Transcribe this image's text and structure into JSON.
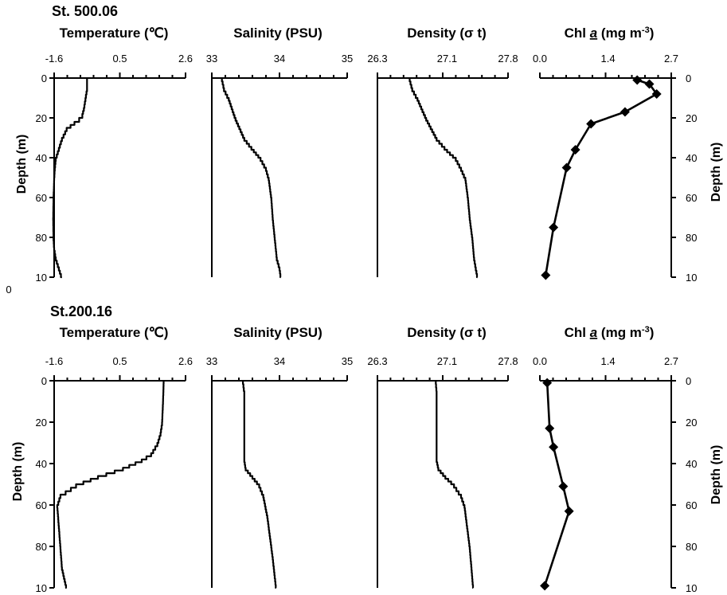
{
  "figure": {
    "stations": [
      {
        "label": "St. 500.06",
        "depth_label": "Depth (m)",
        "depth_ticks": [
          "0",
          "20",
          "40",
          "60",
          "80",
          "10"
        ],
        "depth_extra_tick": "0"
      },
      {
        "label": "St.200.16",
        "depth_label": "Depth (m)",
        "depth_ticks": [
          "0",
          "20",
          "40",
          "60",
          "80",
          "10"
        ],
        "depth_extra_tick": ""
      }
    ]
  },
  "chart_data": [
    {
      "type": "line",
      "station": "St. 500.06",
      "title": "Temperature (℃)",
      "xlim": [
        -1.6,
        2.6
      ],
      "x_ticks": [
        "-1.6",
        "0.5",
        "2.6"
      ],
      "ylim": [
        0,
        100
      ],
      "y_reversed": true,
      "x": [
        -0.55,
        -0.55,
        -0.6,
        -0.65,
        -0.7,
        -0.8,
        -0.95,
        -1.2,
        -1.35,
        -1.45,
        -1.55,
        -1.58,
        -1.6,
        -1.62,
        -1.63,
        -1.62,
        -1.6,
        -1.55,
        -1.45,
        -1.35
      ],
      "y": [
        0,
        5,
        10,
        15,
        18,
        20,
        22,
        25,
        30,
        35,
        40,
        45,
        50,
        60,
        70,
        80,
        85,
        90,
        95,
        100
      ]
    },
    {
      "type": "line",
      "station": "St. 500.06",
      "title": "Salinity (PSU)",
      "xlim": [
        33,
        35
      ],
      "x_ticks": [
        "33",
        "34",
        "35"
      ],
      "ylim": [
        0,
        100
      ],
      "y_reversed": true,
      "x": [
        33.15,
        33.18,
        33.25,
        33.35,
        33.48,
        33.62,
        33.72,
        33.8,
        33.84,
        33.88,
        33.9,
        33.93,
        33.96,
        34.0,
        34.02
      ],
      "y": [
        0,
        5,
        10,
        20,
        30,
        36,
        40,
        45,
        50,
        60,
        70,
        80,
        90,
        95,
        100
      ]
    },
    {
      "type": "line",
      "station": "St. 500.06",
      "title": "Density (σ t)",
      "xlim": [
        26.3,
        27.8
      ],
      "x_ticks": [
        "26.3",
        "27.1",
        "27.8"
      ],
      "ylim": [
        0,
        100
      ],
      "y_reversed": true,
      "x": [
        26.67,
        26.7,
        26.76,
        26.86,
        26.98,
        27.1,
        27.2,
        27.26,
        27.31,
        27.34,
        27.36,
        27.39,
        27.41,
        27.43,
        27.45
      ],
      "y": [
        0,
        5,
        10,
        20,
        30,
        36,
        40,
        45,
        50,
        60,
        70,
        80,
        90,
        95,
        100
      ]
    },
    {
      "type": "line",
      "station": "St. 500.06",
      "title": "Chl a (mg m⁻³)",
      "title_main": "Chl ",
      "title_a": "a",
      "title_unit": " (mg m",
      "title_sup": "-3",
      "title_end": ")",
      "xlim": [
        0.0,
        2.7
      ],
      "x_ticks": [
        "0.0",
        "1.4",
        "2.7"
      ],
      "ylim": [
        0,
        100
      ],
      "y_reversed": true,
      "markers": true,
      "x": [
        2.0,
        2.25,
        2.4,
        1.75,
        1.05,
        0.73,
        0.55,
        0.28,
        0.12
      ],
      "y": [
        1,
        3,
        8,
        17,
        23,
        36,
        45,
        75,
        99
      ]
    },
    {
      "type": "line",
      "station": "St.200.16",
      "title": "Temperature (℃)",
      "xlim": [
        -1.6,
        2.6
      ],
      "x_ticks": [
        "-1.6",
        "0.5",
        "2.6"
      ],
      "ylim": [
        0,
        100
      ],
      "y_reversed": true,
      "x": [
        1.9,
        1.88,
        1.85,
        1.8,
        1.7,
        1.5,
        1.2,
        0.6,
        -0.2,
        -0.9,
        -1.4,
        -1.5,
        -1.45,
        -1.4,
        -1.35,
        -1.2
      ],
      "y": [
        0,
        10,
        20,
        25,
        30,
        35,
        38,
        42,
        46,
        50,
        55,
        60,
        70,
        80,
        90,
        100
      ]
    },
    {
      "type": "line",
      "station": "St.200.16",
      "title": "Salinity (PSU)",
      "xlim": [
        33,
        35
      ],
      "x_ticks": [
        "33",
        "34",
        "35"
      ],
      "ylim": [
        0,
        100
      ],
      "y_reversed": true,
      "x": [
        33.46,
        33.48,
        33.48,
        33.48,
        33.5,
        33.6,
        33.7,
        33.76,
        33.82,
        33.86,
        33.9,
        33.95
      ],
      "y": [
        0,
        5,
        20,
        38,
        42,
        46,
        50,
        55,
        65,
        75,
        85,
        100
      ]
    },
    {
      "type": "line",
      "station": "St.200.16",
      "title": "Density (σ t)",
      "xlim": [
        26.3,
        27.8
      ],
      "x_ticks": [
        "26.3",
        "27.1",
        "27.8"
      ],
      "ylim": [
        0,
        100
      ],
      "y_reversed": true,
      "x": [
        26.97,
        26.98,
        26.98,
        26.98,
        27.0,
        27.08,
        27.18,
        27.26,
        27.3,
        27.33,
        27.36,
        27.38,
        27.4
      ],
      "y": [
        0,
        5,
        20,
        38,
        42,
        46,
        50,
        55,
        60,
        70,
        80,
        90,
        100
      ]
    },
    {
      "type": "line",
      "station": "St.200.16",
      "title": "Chl a (mg m⁻³)",
      "title_main": "Chl ",
      "title_a": "a",
      "title_unit": " (mg m",
      "title_sup": "-3",
      "title_end": ")",
      "xlim": [
        0.0,
        2.7
      ],
      "x_ticks": [
        "0.0",
        "1.4",
        "2.7"
      ],
      "ylim": [
        0,
        100
      ],
      "y_reversed": true,
      "markers": true,
      "x": [
        0.15,
        0.2,
        0.28,
        0.48,
        0.6,
        0.1
      ],
      "y": [
        1,
        23,
        32,
        51,
        63,
        99
      ]
    }
  ]
}
